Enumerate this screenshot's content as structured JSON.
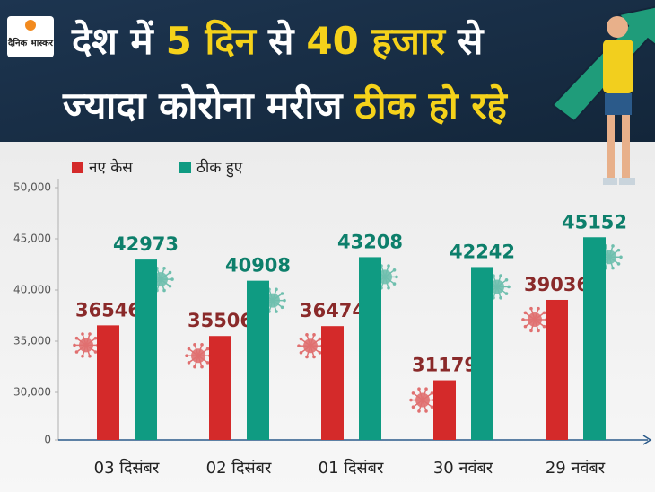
{
  "logo": "दैनिक भास्कर",
  "title_lines": [
    [
      {
        "text": "देश में",
        "highlight": false
      },
      {
        "text": "5 दिन",
        "highlight": true
      },
      {
        "text": "से",
        "highlight": false
      },
      {
        "text": "40 हजार",
        "highlight": true
      },
      {
        "text": "से",
        "highlight": false
      }
    ],
    [
      {
        "text": "ज्यादा कोरोना मरीज",
        "highlight": false
      },
      {
        "text": "ठीक हो रहे",
        "highlight": true
      }
    ]
  ],
  "chart_data": {
    "type": "bar",
    "categories": [
      "03 दिसंबर",
      "02 दिसंबर",
      "01 दिसंबर",
      "30 नवंबर",
      "29 नवंबर"
    ],
    "series": [
      {
        "name": "नए केस",
        "color": "#d42a2a",
        "label_color": "#8a2a2a",
        "values": [
          36546,
          35506,
          36474,
          31179,
          39036
        ]
      },
      {
        "name": "ठीक हुए",
        "color": "#0f9b82",
        "label_color": "#0d7f6b",
        "values": [
          42973,
          40908,
          43208,
          42242,
          45152
        ]
      }
    ],
    "ylim": [
      25350,
      50000
    ],
    "axis_break": true,
    "yticks": [
      0,
      {
        "value": 30000,
        "label": "30,000"
      },
      {
        "value": 35000,
        "label": "35,000"
      },
      {
        "value": 40000,
        "label": "40,000"
      },
      {
        "value": 45000,
        "label": "45,000"
      },
      {
        "value": 50000,
        "label": "50,000"
      }
    ],
    "legend": "top-left"
  }
}
